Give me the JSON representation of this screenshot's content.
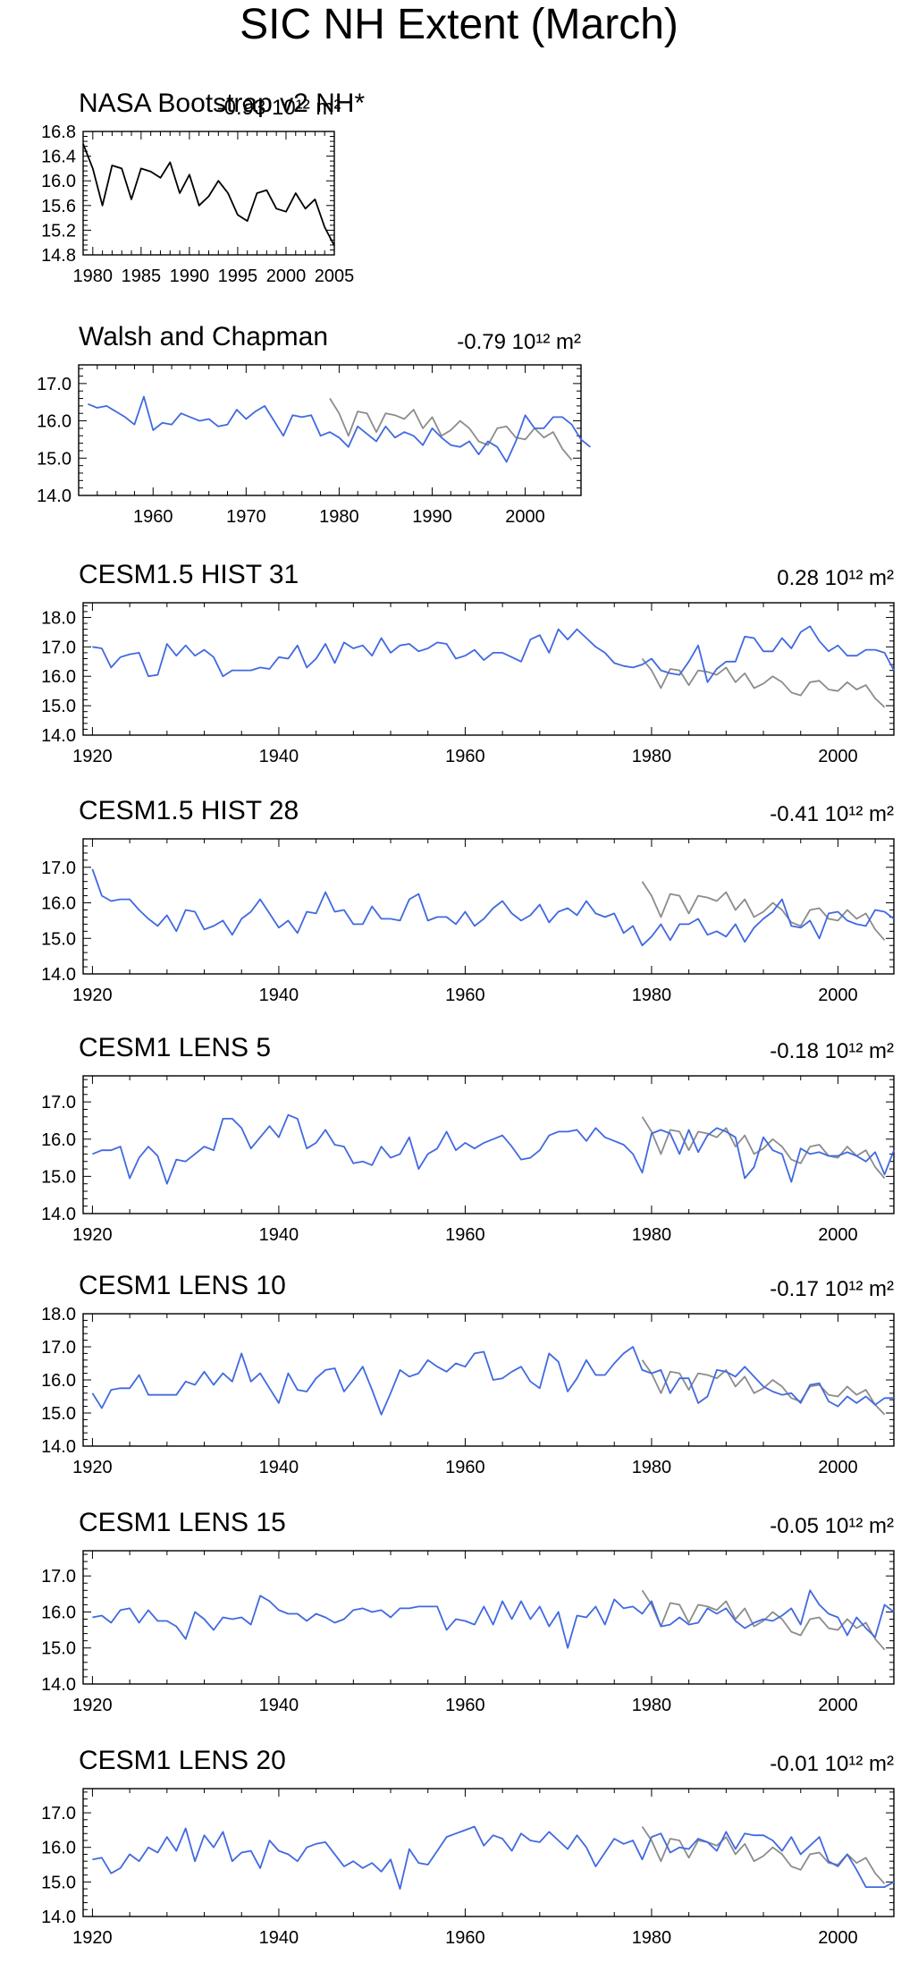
{
  "title": "SIC NH Extent (March)",
  "colors": {
    "model": "#4169e1",
    "obs": "#8c8c8c",
    "axis": "#000000"
  },
  "chart_data": [
    {
      "type": "line",
      "title": "NASA Bootstrap v2 NH*",
      "trend": "-0.93 10¹² m²",
      "xlim": [
        1979,
        2005
      ],
      "ylim": [
        14.8,
        16.8
      ],
      "xticks": [
        1980,
        1985,
        1990,
        1995,
        2000,
        2005
      ],
      "yticks": [
        14.8,
        15.2,
        15.6,
        16.0,
        16.4,
        16.8
      ],
      "yfmt": 1,
      "series": [
        {
          "color": "#000000",
          "x0": 1979,
          "values": [
            16.6,
            16.2,
            15.6,
            16.25,
            16.2,
            15.7,
            16.2,
            16.15,
            16.05,
            16.3,
            15.8,
            16.1,
            15.6,
            15.75,
            16.0,
            15.8,
            15.45,
            15.35,
            15.8,
            15.85,
            15.55,
            15.5,
            15.8,
            15.55,
            15.7,
            15.25,
            14.95
          ]
        }
      ]
    },
    {
      "type": "line",
      "title": "Walsh and Chapman",
      "trend": "-0.79 10¹² m²",
      "xlim": [
        1952,
        2006
      ],
      "ylim": [
        14.0,
        17.5
      ],
      "xticks": [
        1960,
        1970,
        1980,
        1990,
        2000
      ],
      "yticks": [
        14.0,
        15.0,
        16.0,
        17.0
      ],
      "yfmt": 1,
      "series": [
        {
          "color": "#4169e1",
          "x0": 1953,
          "values": [
            16.45,
            16.35,
            16.4,
            16.25,
            16.1,
            15.9,
            16.65,
            15.75,
            15.95,
            15.9,
            16.2,
            16.1,
            16.0,
            16.05,
            15.85,
            15.9,
            16.3,
            16.05,
            16.25,
            16.4,
            16.0,
            15.6,
            16.15,
            16.1,
            16.15,
            15.6,
            15.7,
            15.55,
            15.3,
            15.85,
            15.65,
            15.45,
            15.85,
            15.55,
            15.7,
            15.6,
            15.35,
            15.8,
            15.55,
            15.35,
            15.3,
            15.45,
            15.1,
            15.45,
            15.3,
            14.9,
            15.45,
            16.15,
            15.8,
            15.8,
            16.1,
            16.1,
            15.9,
            15.5,
            15.3
          ]
        },
        {
          "color": "#8c8c8c",
          "x0": 1979,
          "values": [
            16.6,
            16.2,
            15.6,
            16.25,
            16.2,
            15.7,
            16.2,
            16.15,
            16.05,
            16.3,
            15.8,
            16.1,
            15.6,
            15.75,
            16.0,
            15.8,
            15.45,
            15.35,
            15.8,
            15.85,
            15.55,
            15.5,
            15.8,
            15.55,
            15.7,
            15.25,
            14.95
          ]
        }
      ]
    },
    {
      "type": "line",
      "title": "CESM1.5 HIST 31",
      "trend": "0.28 10¹² m²",
      "xlim": [
        1919,
        2006
      ],
      "ylim": [
        14.0,
        18.5
      ],
      "xticks": [
        1920,
        1940,
        1960,
        1980,
        2000
      ],
      "yticks": [
        14.0,
        15.0,
        16.0,
        17.0,
        18.0
      ],
      "yfmt": 1,
      "series": [
        {
          "color": "#4169e1",
          "x0": 1920,
          "values": [
            17.0,
            16.95,
            16.3,
            16.65,
            16.75,
            16.8,
            16.0,
            16.05,
            17.1,
            16.7,
            17.05,
            16.7,
            16.9,
            16.65,
            16.0,
            16.2,
            16.2,
            16.2,
            16.3,
            16.25,
            16.65,
            16.6,
            17.05,
            16.3,
            16.6,
            17.1,
            16.45,
            17.15,
            16.95,
            17.05,
            16.7,
            17.3,
            16.8,
            17.05,
            17.1,
            16.85,
            16.95,
            17.15,
            17.1,
            16.6,
            16.7,
            16.9,
            16.55,
            16.8,
            16.8,
            16.65,
            16.5,
            17.25,
            17.4,
            16.8,
            17.6,
            17.25,
            17.6,
            17.3,
            17.0,
            16.8,
            16.45,
            16.35,
            16.3,
            16.4,
            16.6,
            16.2,
            16.1,
            16.05,
            16.5,
            17.05,
            15.8,
            16.25,
            16.5,
            16.5,
            17.35,
            17.3,
            16.85,
            16.85,
            17.3,
            16.95,
            17.5,
            17.7,
            17.2,
            16.85,
            17.05,
            16.7,
            16.7,
            16.9,
            16.9,
            16.8,
            16.2
          ]
        },
        {
          "color": "#8c8c8c",
          "x0": 1979,
          "values": [
            16.6,
            16.2,
            15.6,
            16.25,
            16.2,
            15.7,
            16.2,
            16.15,
            16.05,
            16.3,
            15.8,
            16.1,
            15.6,
            15.75,
            16.0,
            15.8,
            15.45,
            15.35,
            15.8,
            15.85,
            15.55,
            15.5,
            15.8,
            15.55,
            15.7,
            15.25,
            14.95
          ]
        }
      ]
    },
    {
      "type": "line",
      "title": "CESM1.5 HIST 28",
      "trend": "-0.41 10¹² m²",
      "xlim": [
        1919,
        2006
      ],
      "ylim": [
        14.0,
        17.8
      ],
      "xticks": [
        1920,
        1940,
        1960,
        1980,
        2000
      ],
      "yticks": [
        14.0,
        15.0,
        16.0,
        17.0
      ],
      "yfmt": 1,
      "series": [
        {
          "color": "#4169e1",
          "x0": 1920,
          "values": [
            16.95,
            16.2,
            16.05,
            16.1,
            16.1,
            15.8,
            15.55,
            15.35,
            15.65,
            15.2,
            15.8,
            15.75,
            15.25,
            15.35,
            15.5,
            15.1,
            15.55,
            15.75,
            16.1,
            15.7,
            15.3,
            15.5,
            15.15,
            15.75,
            15.7,
            16.3,
            15.75,
            15.8,
            15.4,
            15.4,
            15.9,
            15.55,
            15.55,
            15.5,
            16.1,
            16.25,
            15.5,
            15.6,
            15.6,
            15.4,
            15.75,
            15.35,
            15.55,
            15.85,
            16.05,
            15.7,
            15.5,
            15.65,
            15.95,
            15.45,
            15.75,
            15.85,
            15.65,
            16.05,
            15.7,
            15.6,
            15.7,
            15.15,
            15.35,
            14.8,
            15.05,
            15.4,
            14.95,
            15.4,
            15.4,
            15.55,
            15.1,
            15.2,
            15.05,
            15.4,
            14.9,
            15.3,
            15.55,
            15.75,
            16.1,
            15.35,
            15.3,
            15.5,
            15.0,
            15.7,
            15.75,
            15.5,
            15.4,
            15.35,
            15.8,
            15.75,
            15.55
          ]
        },
        {
          "color": "#8c8c8c",
          "x0": 1979,
          "values": [
            16.6,
            16.2,
            15.6,
            16.25,
            16.2,
            15.7,
            16.2,
            16.15,
            16.05,
            16.3,
            15.8,
            16.1,
            15.6,
            15.75,
            16.0,
            15.8,
            15.45,
            15.35,
            15.8,
            15.85,
            15.55,
            15.5,
            15.8,
            15.55,
            15.7,
            15.25,
            14.95
          ]
        }
      ]
    },
    {
      "type": "line",
      "title": "CESM1 LENS 5",
      "trend": "-0.18 10¹² m²",
      "xlim": [
        1919,
        2006
      ],
      "ylim": [
        14.0,
        17.7
      ],
      "xticks": [
        1920,
        1940,
        1960,
        1980,
        2000
      ],
      "yticks": [
        14.0,
        15.0,
        16.0,
        17.0
      ],
      "yfmt": 1,
      "series": [
        {
          "color": "#4169e1",
          "x0": 1920,
          "values": [
            15.6,
            15.7,
            15.7,
            15.8,
            14.95,
            15.5,
            15.8,
            15.55,
            14.8,
            15.45,
            15.4,
            15.6,
            15.8,
            15.7,
            16.55,
            16.55,
            16.3,
            15.75,
            16.05,
            16.35,
            16.05,
            16.65,
            16.55,
            15.75,
            15.9,
            16.25,
            15.85,
            15.8,
            15.35,
            15.4,
            15.3,
            15.8,
            15.5,
            15.6,
            16.05,
            15.2,
            15.6,
            15.75,
            16.2,
            15.7,
            15.9,
            15.75,
            15.9,
            16.0,
            16.1,
            15.8,
            15.45,
            15.5,
            15.7,
            16.1,
            16.2,
            16.2,
            16.25,
            15.95,
            16.3,
            16.05,
            15.95,
            15.85,
            15.6,
            15.1,
            16.15,
            16.25,
            16.15,
            15.6,
            16.25,
            15.65,
            16.1,
            16.3,
            16.2,
            16.05,
            14.95,
            15.25,
            16.05,
            15.7,
            15.6,
            14.85,
            15.75,
            15.6,
            15.65,
            15.55,
            15.55,
            15.65,
            15.55,
            15.4,
            15.65,
            15.05,
            15.7
          ]
        },
        {
          "color": "#8c8c8c",
          "x0": 1979,
          "values": [
            16.6,
            16.2,
            15.6,
            16.25,
            16.2,
            15.7,
            16.2,
            16.15,
            16.05,
            16.3,
            15.8,
            16.1,
            15.6,
            15.75,
            16.0,
            15.8,
            15.45,
            15.35,
            15.8,
            15.85,
            15.55,
            15.5,
            15.8,
            15.55,
            15.7,
            15.25,
            14.95
          ]
        }
      ]
    },
    {
      "type": "line",
      "title": "CESM1 LENS 10",
      "trend": "-0.17 10¹² m²",
      "xlim": [
        1919,
        2006
      ],
      "ylim": [
        14.0,
        18.0
      ],
      "xticks": [
        1920,
        1940,
        1960,
        1980,
        2000
      ],
      "yticks": [
        14.0,
        15.0,
        16.0,
        17.0,
        18.0
      ],
      "yfmt": 1,
      "series": [
        {
          "color": "#4169e1",
          "x0": 1920,
          "values": [
            15.6,
            15.15,
            15.7,
            15.75,
            15.75,
            16.15,
            15.55,
            15.55,
            15.55,
            15.55,
            15.95,
            15.85,
            16.25,
            15.85,
            16.2,
            15.95,
            16.8,
            15.95,
            16.2,
            15.75,
            15.3,
            16.2,
            15.7,
            15.65,
            16.05,
            16.3,
            16.35,
            15.65,
            16.0,
            16.4,
            15.7,
            14.95,
            15.6,
            16.3,
            16.1,
            16.2,
            16.6,
            16.4,
            16.25,
            16.5,
            16.4,
            16.8,
            16.85,
            16.0,
            16.05,
            16.25,
            16.4,
            15.95,
            15.75,
            16.8,
            16.55,
            15.65,
            16.05,
            16.6,
            16.15,
            16.15,
            16.5,
            16.8,
            17.0,
            16.3,
            16.2,
            16.3,
            15.6,
            16.05,
            16.05,
            15.3,
            15.5,
            16.3,
            16.25,
            16.1,
            16.4,
            16.1,
            15.8,
            15.65,
            15.55,
            15.6,
            15.3,
            15.85,
            15.9,
            15.35,
            15.2,
            15.5,
            15.3,
            15.5,
            15.25,
            15.45,
            15.45
          ]
        },
        {
          "color": "#8c8c8c",
          "x0": 1979,
          "values": [
            16.6,
            16.2,
            15.6,
            16.25,
            16.2,
            15.7,
            16.2,
            16.15,
            16.05,
            16.3,
            15.8,
            16.1,
            15.6,
            15.75,
            16.0,
            15.8,
            15.45,
            15.35,
            15.8,
            15.85,
            15.55,
            15.5,
            15.8,
            15.55,
            15.7,
            15.25,
            14.95
          ]
        }
      ]
    },
    {
      "type": "line",
      "title": "CESM1 LENS 15",
      "trend": "-0.05 10¹² m²",
      "xlim": [
        1919,
        2006
      ],
      "ylim": [
        14.0,
        17.7
      ],
      "xticks": [
        1920,
        1940,
        1960,
        1980,
        2000
      ],
      "yticks": [
        14.0,
        15.0,
        16.0,
        17.0
      ],
      "yfmt": 1,
      "series": [
        {
          "color": "#4169e1",
          "x0": 1920,
          "values": [
            15.85,
            15.9,
            15.7,
            16.05,
            16.1,
            15.7,
            16.05,
            15.75,
            15.75,
            15.6,
            15.25,
            16.0,
            15.8,
            15.5,
            15.85,
            15.8,
            15.85,
            15.65,
            16.45,
            16.3,
            16.05,
            15.95,
            15.95,
            15.75,
            15.95,
            15.85,
            15.7,
            15.8,
            16.05,
            16.1,
            16.0,
            16.05,
            15.85,
            16.1,
            16.1,
            16.15,
            16.15,
            16.15,
            15.5,
            15.8,
            15.75,
            15.65,
            16.15,
            15.65,
            16.3,
            15.8,
            16.3,
            15.8,
            16.15,
            15.6,
            16.0,
            15.0,
            15.9,
            15.85,
            16.15,
            15.65,
            16.35,
            16.1,
            16.15,
            15.95,
            16.3,
            15.6,
            15.65,
            15.85,
            15.65,
            15.7,
            16.1,
            15.95,
            16.1,
            15.75,
            15.55,
            15.7,
            15.8,
            15.75,
            15.9,
            16.1,
            15.65,
            16.6,
            16.2,
            15.95,
            15.85,
            15.35,
            15.85,
            15.55,
            15.3,
            16.2,
            16.0
          ]
        },
        {
          "color": "#8c8c8c",
          "x0": 1979,
          "values": [
            16.6,
            16.2,
            15.6,
            16.25,
            16.2,
            15.7,
            16.2,
            16.15,
            16.05,
            16.3,
            15.8,
            16.1,
            15.6,
            15.75,
            16.0,
            15.8,
            15.45,
            15.35,
            15.8,
            15.85,
            15.55,
            15.5,
            15.8,
            15.55,
            15.7,
            15.25,
            14.95
          ]
        }
      ]
    },
    {
      "type": "line",
      "title": "CESM1 LENS 20",
      "trend": "-0.01 10¹² m²",
      "xlim": [
        1919,
        2006
      ],
      "ylim": [
        14.0,
        17.7
      ],
      "xticks": [
        1920,
        1940,
        1960,
        1980,
        2000
      ],
      "yticks": [
        14.0,
        15.0,
        16.0,
        17.0
      ],
      "yfmt": 1,
      "series": [
        {
          "color": "#4169e1",
          "x0": 1920,
          "values": [
            15.65,
            15.7,
            15.25,
            15.4,
            15.8,
            15.6,
            16.0,
            15.85,
            16.3,
            15.9,
            16.55,
            15.6,
            16.35,
            16.0,
            16.45,
            15.6,
            15.85,
            15.9,
            15.4,
            16.2,
            15.9,
            15.8,
            15.6,
            16.0,
            16.1,
            16.15,
            15.8,
            15.45,
            15.6,
            15.4,
            15.55,
            15.3,
            15.65,
            14.8,
            15.95,
            15.55,
            15.5,
            15.9,
            16.3,
            16.4,
            16.5,
            16.6,
            16.05,
            16.35,
            16.25,
            15.9,
            16.4,
            16.2,
            16.15,
            16.45,
            16.2,
            15.95,
            16.35,
            16.0,
            15.45,
            15.85,
            16.25,
            16.1,
            16.2,
            15.65,
            16.3,
            16.4,
            15.85,
            16.0,
            15.95,
            16.25,
            16.15,
            15.9,
            16.45,
            15.95,
            16.4,
            16.35,
            16.35,
            16.2,
            15.9,
            16.3,
            15.8,
            16.05,
            16.3,
            15.6,
            15.45,
            15.8,
            15.35,
            14.85,
            14.85,
            14.85,
            15.0
          ]
        },
        {
          "color": "#8c8c8c",
          "x0": 1979,
          "values": [
            16.6,
            16.2,
            15.6,
            16.25,
            16.2,
            15.7,
            16.2,
            16.15,
            16.05,
            16.3,
            15.8,
            16.1,
            15.6,
            15.75,
            16.0,
            15.8,
            15.45,
            15.35,
            15.8,
            15.85,
            15.55,
            15.5,
            15.8,
            15.55,
            15.7,
            15.25,
            14.95
          ]
        }
      ]
    }
  ]
}
